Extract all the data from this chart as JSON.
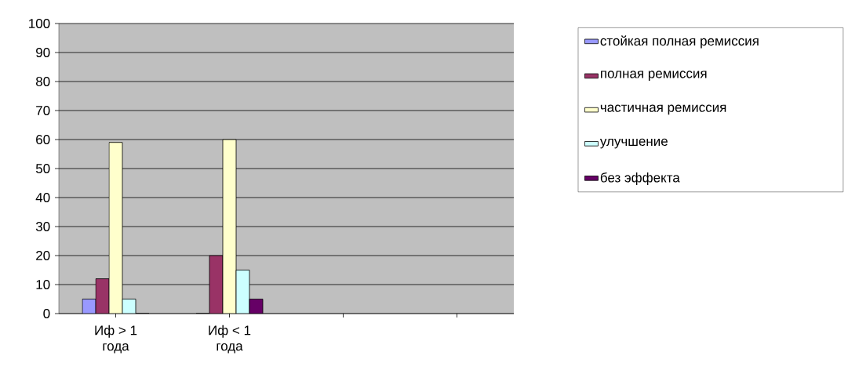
{
  "chart_data": {
    "type": "bar",
    "categories": [
      "Иф > 1 года",
      "Иф < 1 года",
      null,
      null
    ],
    "series": [
      {
        "name": "стойкая полная ремиссия",
        "color": "#9999ff",
        "values": [
          5,
          0,
          null,
          null
        ]
      },
      {
        "name": "полная ремиссия",
        "color": "#993366",
        "values": [
          12,
          20,
          null,
          null
        ]
      },
      {
        "name": "частичная ремиссия",
        "color": "#ffffcc",
        "values": [
          59,
          60,
          null,
          null
        ]
      },
      {
        "name": "улучшение",
        "color": "#ccffff",
        "values": [
          5,
          15,
          null,
          null
        ]
      },
      {
        "name": "без эффекта",
        "color": "#660066",
        "values": [
          0,
          5,
          null,
          null
        ]
      }
    ],
    "ylim": [
      0,
      100
    ],
    "yticks": [
      0,
      10,
      20,
      30,
      40,
      50,
      60,
      70,
      80,
      90,
      100
    ],
    "grid": "y",
    "legend": "right"
  }
}
